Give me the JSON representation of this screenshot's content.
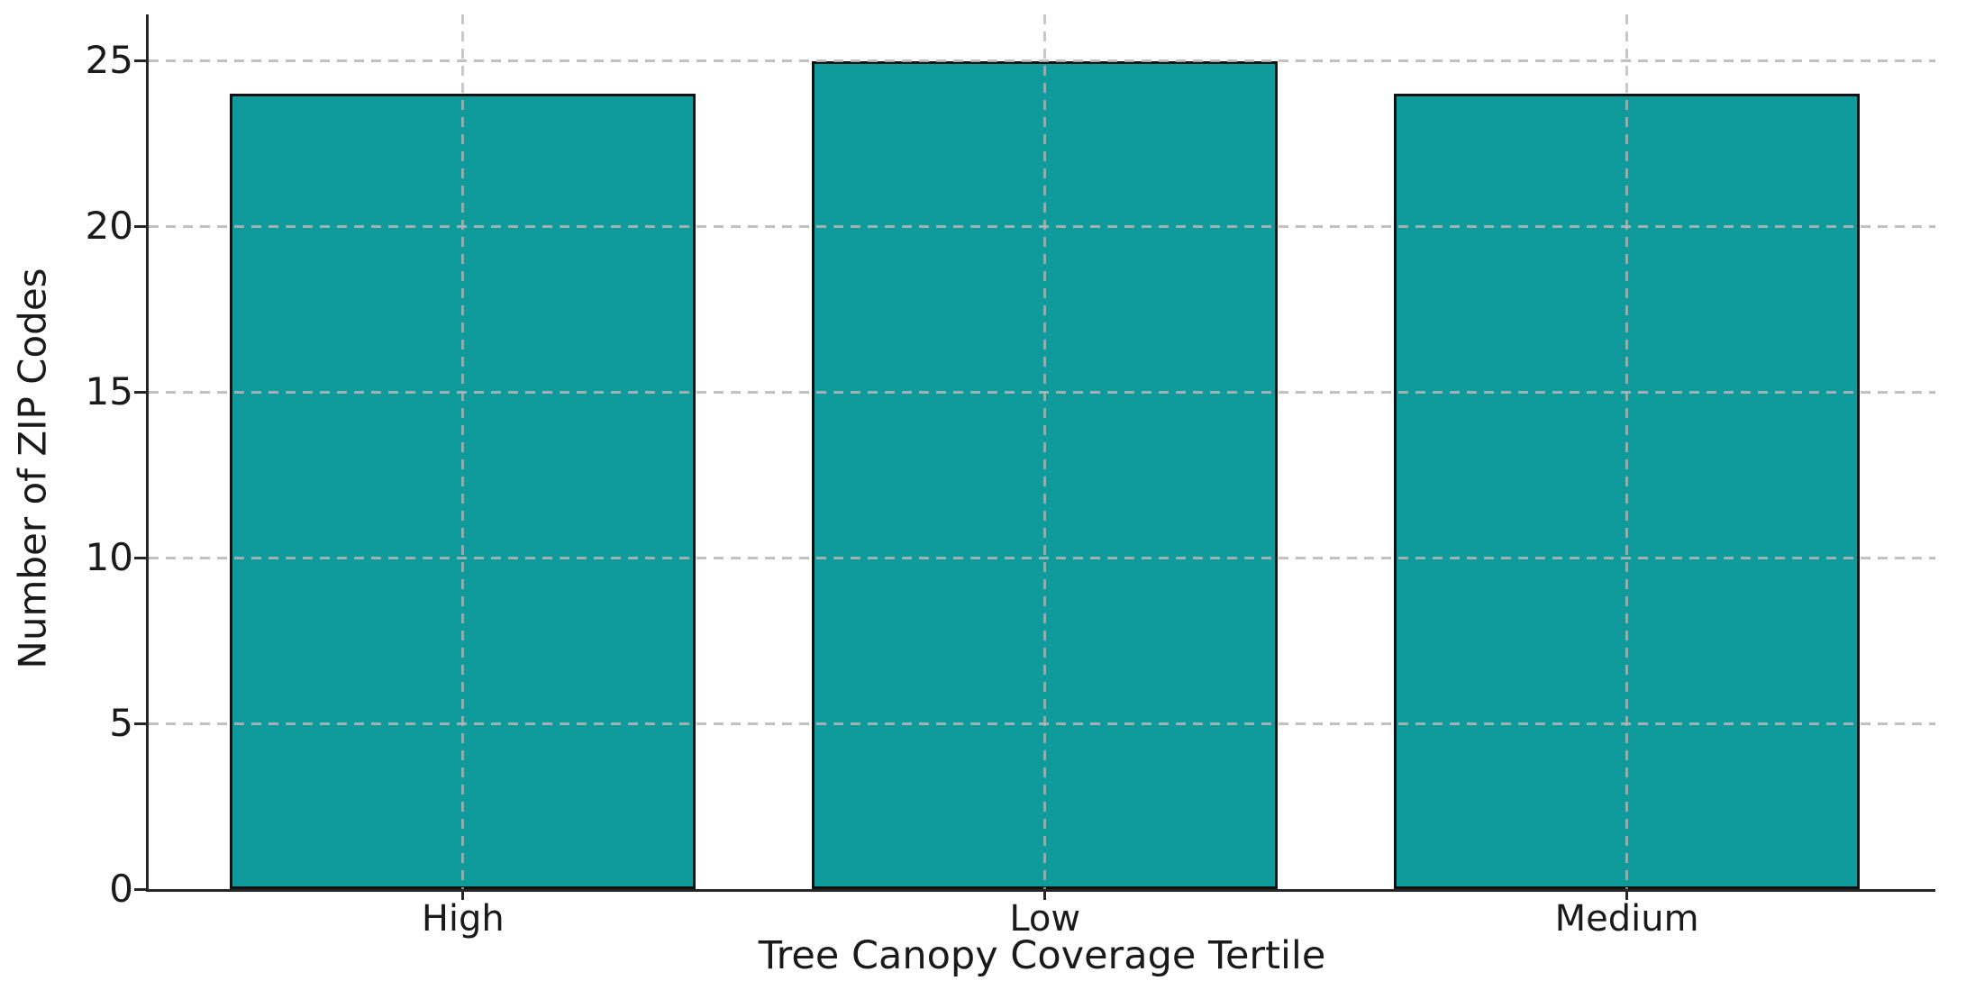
{
  "chart_data": {
    "type": "bar",
    "title": "",
    "xlabel": "Tree Canopy Coverage Tertile",
    "ylabel": "Number of ZIP Codes",
    "categories": [
      "High",
      "Low",
      "Medium"
    ],
    "values": [
      24,
      25,
      24
    ],
    "yticks": [
      0,
      5,
      10,
      15,
      20,
      25
    ],
    "ylim": [
      0,
      26.4
    ],
    "xlim": [
      -0.54,
      2.53
    ],
    "bar_width_fraction": 0.8,
    "grid": "dashed gridlines on both axes, drawn light over bars",
    "legend": "none",
    "colors": {
      "bar_fill": "#0f9b9b",
      "bar_edge": "#111111",
      "grid": "#c6c6c6",
      "spine": "#262626",
      "text": "#1a1a1a",
      "background": "#ffffff"
    }
  }
}
